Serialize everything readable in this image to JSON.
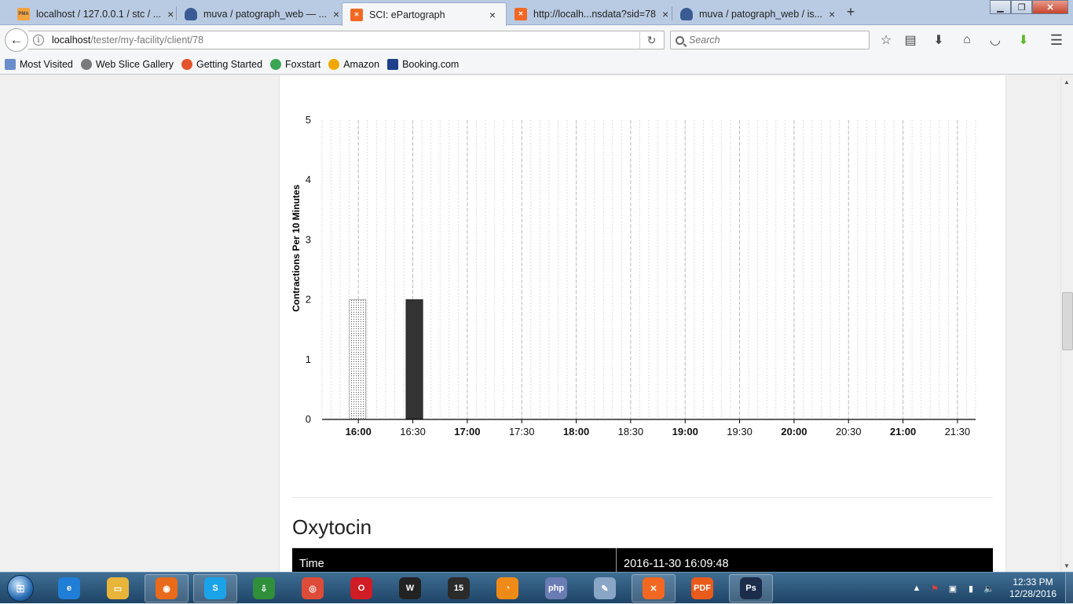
{
  "browser": {
    "tabs": [
      {
        "label": "localhost / 127.0.0.1 / stc / ...",
        "favicon": "phpmyadmin-icon",
        "active": false
      },
      {
        "label": "muva / patograph_web — ...",
        "favicon": "shield-icon",
        "active": false
      },
      {
        "label": "SCI: ePartograph",
        "favicon": "xampp-icon",
        "active": true
      },
      {
        "label": "http://localh...nsdata?sid=78",
        "favicon": "xampp-icon",
        "active": false
      },
      {
        "label": "muva / patograph_web / is...",
        "favicon": "shield-icon",
        "active": false
      }
    ],
    "url_host": "localhost",
    "url_path": "/tester/my-facility/client/78",
    "search_placeholder": "Search",
    "bookmarks": [
      {
        "label": "Most Visited",
        "icon": "star-folder-icon"
      },
      {
        "label": "Web Slice Gallery",
        "icon": "globe-icon"
      },
      {
        "label": "Getting Started",
        "icon": "firefox-icon"
      },
      {
        "label": "Foxstart",
        "icon": "foxstart-icon"
      },
      {
        "label": "Amazon",
        "icon": "amazon-icon"
      },
      {
        "label": "Booking.com",
        "icon": "booking-icon"
      }
    ]
  },
  "chart_data": {
    "type": "bar",
    "title": "",
    "ylabel": "Contractions Per 10 Minutes",
    "xlabel": "",
    "ylim": [
      0,
      5
    ],
    "yticks": [
      "0",
      "1",
      "2",
      "3",
      "4",
      "5"
    ],
    "xlim": [
      "15:40",
      "21:40"
    ],
    "xticks": [
      {
        "label": "16:00",
        "bold": true
      },
      {
        "label": "16:30",
        "bold": false
      },
      {
        "label": "17:00",
        "bold": true
      },
      {
        "label": "17:30",
        "bold": false
      },
      {
        "label": "18:00",
        "bold": true
      },
      {
        "label": "18:30",
        "bold": false
      },
      {
        "label": "19:00",
        "bold": true
      },
      {
        "label": "19:30",
        "bold": false
      },
      {
        "label": "20:00",
        "bold": true
      },
      {
        "label": "20:30",
        "bold": false
      },
      {
        "label": "21:00",
        "bold": true
      },
      {
        "label": "21:30",
        "bold": false
      }
    ],
    "bars": [
      {
        "time": "16:00",
        "value": 2,
        "style": "dotted"
      },
      {
        "time": "16:30",
        "value": 2,
        "style": "solid"
      }
    ],
    "grid": true
  },
  "oxytocin": {
    "title": "Oxytocin",
    "header_label": "Time",
    "header_value": "2016-11-30 16:09:48"
  },
  "taskbar": {
    "apps": [
      "internet-explorer-icon",
      "file-explorer-icon",
      "firefox-icon",
      "skype-icon",
      "idm-icon",
      "chrome-icon",
      "opera-icon",
      "wamp-icon",
      "app-15-icon",
      "launcher-icon",
      "php-icon",
      "paint-icon",
      "xampp-icon",
      "pdf-icon",
      "photoshop-icon"
    ],
    "time": "12:33 PM",
    "date": "12/28/2016"
  }
}
